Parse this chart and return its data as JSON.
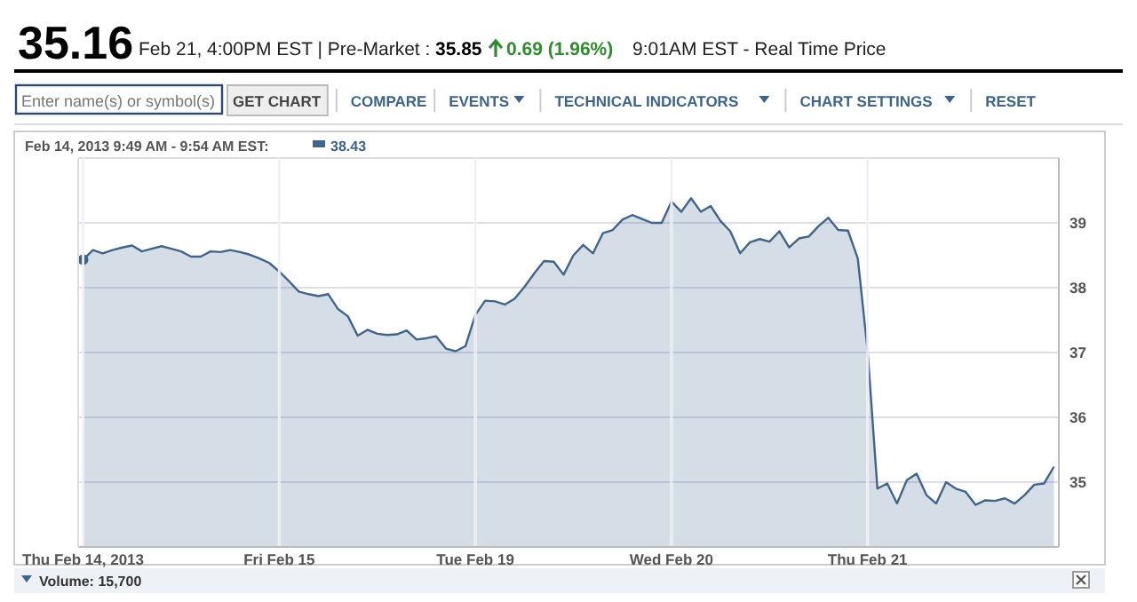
{
  "chart_data": {
    "type": "area",
    "title": "35.16",
    "subtitle": "Feb 14, 2013 9:49 AM - 9:54 AM EST:",
    "annotations": [
      "Feb 21, 4:00PM EST | Pre-Market :",
      "35.85",
      "0.69 (1.96%)",
      "9:01AM EST - Real Time Price",
      "Enter name(s) or symbol(s)",
      "GET CHART",
      "COMPARE",
      "EVENTS",
      "TECHNICAL INDICATORS",
      "CHART SETTINGS",
      "RESET",
      "Volume: 15,700",
      "38.43"
    ],
    "categories": [
      "Thu Feb 14, 2013",
      null,
      null,
      null,
      null,
      null,
      null,
      null,
      null,
      null,
      null,
      null,
      null,
      null,
      null,
      null,
      null,
      null,
      null,
      null,
      "Fri Feb 15",
      null,
      null,
      null,
      null,
      null,
      null,
      null,
      null,
      null,
      null,
      null,
      null,
      null,
      null,
      null,
      null,
      null,
      null,
      null,
      "Tue Feb 19",
      null,
      null,
      null,
      null,
      null,
      null,
      null,
      null,
      null,
      null,
      null,
      null,
      null,
      null,
      null,
      null,
      null,
      null,
      null,
      "Wed Feb 20",
      null,
      null,
      null,
      null,
      null,
      null,
      null,
      null,
      null,
      null,
      null,
      null,
      null,
      null,
      null,
      null,
      null,
      null,
      null,
      "Thu Feb 21",
      null,
      null,
      null,
      null,
      null,
      null,
      null,
      null,
      null,
      null,
      null,
      null,
      null,
      null,
      null,
      null,
      null,
      null,
      null
    ],
    "series": [
      {
        "color": "#40658c",
        "values": [
          38.43,
          38.58,
          38.53,
          38.58,
          38.62,
          38.65,
          38.56,
          38.6,
          38.64,
          38.6,
          38.56,
          38.48,
          38.48,
          38.56,
          38.55,
          38.58,
          38.55,
          38.51,
          38.45,
          38.38,
          38.25,
          38.1,
          37.94,
          37.9,
          37.87,
          37.9,
          37.67,
          37.56,
          37.26,
          37.35,
          37.29,
          37.27,
          37.28,
          37.34,
          37.2,
          37.22,
          37.25,
          37.06,
          37.02,
          37.1,
          37.58,
          37.8,
          37.79,
          37.74,
          37.83,
          38.01,
          38.22,
          38.41,
          38.4,
          38.2,
          38.5,
          38.66,
          38.53,
          38.84,
          38.89,
          39.05,
          39.12,
          39.06,
          39.0,
          39.0,
          39.33,
          39.17,
          39.38,
          39.17,
          39.26,
          39.03,
          38.87,
          38.53,
          38.7,
          38.75,
          38.71,
          38.87,
          38.62,
          38.76,
          38.79,
          38.95,
          39.08,
          38.89,
          38.88,
          38.45,
          37.03,
          34.9,
          34.98,
          34.67,
          35.03,
          35.13,
          34.8,
          34.67,
          35.0,
          34.9,
          34.85,
          34.65,
          34.72,
          34.71,
          34.75,
          34.67,
          34.8,
          34.96,
          34.98,
          35.24
        ]
      }
    ],
    "ylim": [
      34,
      40
    ],
    "yticks": [
      35,
      36,
      37,
      38,
      39
    ],
    "grid": true
  }
}
